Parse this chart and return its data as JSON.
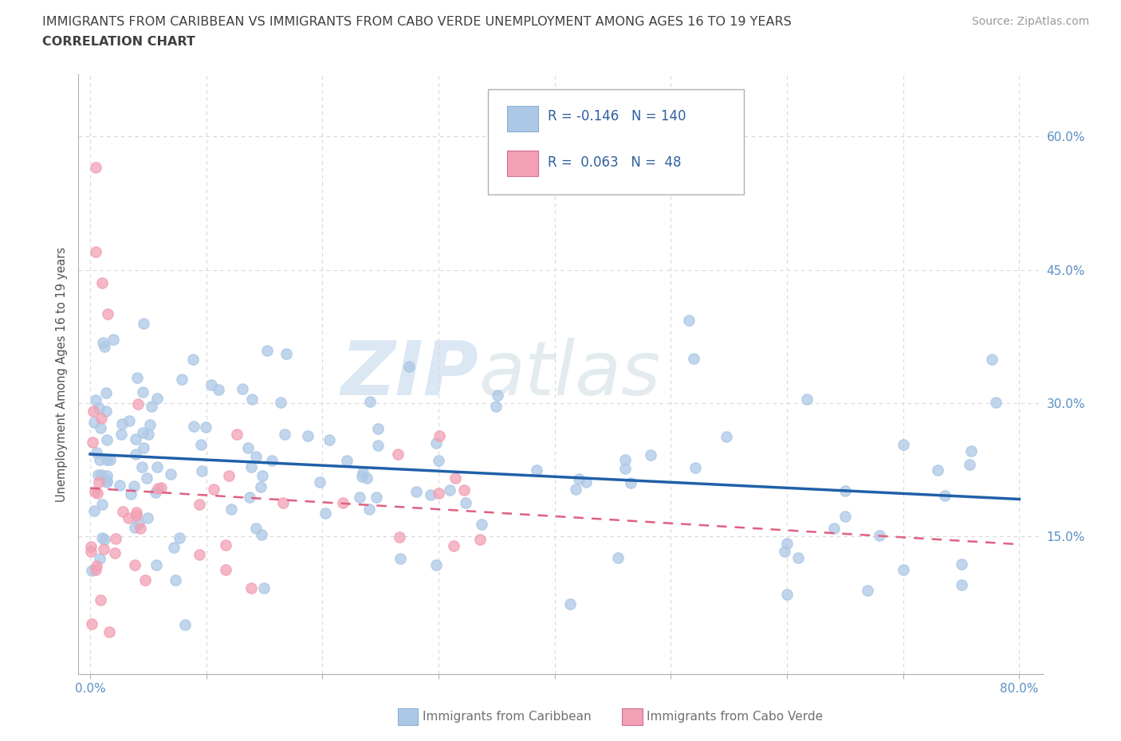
{
  "title_line1": "IMMIGRANTS FROM CARIBBEAN VS IMMIGRANTS FROM CABO VERDE UNEMPLOYMENT AMONG AGES 16 TO 19 YEARS",
  "title_line2": "CORRELATION CHART",
  "source_text": "Source: ZipAtlas.com",
  "ylabel": "Unemployment Among Ages 16 to 19 years",
  "xlim": [
    -0.01,
    0.82
  ],
  "ylim": [
    -0.005,
    0.67
  ],
  "ytick_positions": [
    0.15,
    0.3,
    0.45,
    0.6
  ],
  "ytick_labels": [
    "15.0%",
    "30.0%",
    "45.0%",
    "60.0%"
  ],
  "caribbean_color": "#adc8e6",
  "cabo_verde_color": "#f2a0b5",
  "caribbean_line_color": "#2060a8",
  "cabo_verde_line_color": "#e06080",
  "legend_R1": "-0.146",
  "legend_N1": "140",
  "legend_R2": "0.063",
  "legend_N2": "48",
  "watermark_zip": "ZIP",
  "watermark_atlas": "atlas",
  "bg_color": "#ffffff",
  "grid_color": "#d8d8d8",
  "title_color": "#404040",
  "axis_label_color": "#5a8fc4",
  "bottom_label_color": "#707070"
}
